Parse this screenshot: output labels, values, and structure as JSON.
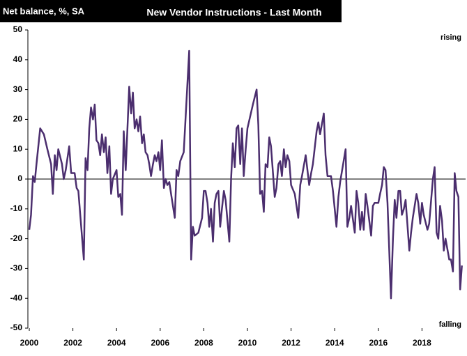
{
  "chart_data": {
    "type": "line",
    "title": "New Vendor Instructions - Last Month",
    "y_label": "Net balance, %, SA",
    "annotations": [
      "rising",
      "falling"
    ],
    "x": [
      2000.0,
      2000.08,
      2000.17,
      2000.25,
      2000.33,
      2000.5,
      2000.67,
      2000.83,
      2001.0,
      2001.08,
      2001.17,
      2001.25,
      2001.33,
      2001.5,
      2001.58,
      2001.67,
      2001.83,
      2001.92,
      2002.08,
      2002.17,
      2002.25,
      2002.5,
      2002.58,
      2002.67,
      2002.75,
      2002.83,
      2002.92,
      2003.0,
      2003.08,
      2003.17,
      2003.25,
      2003.33,
      2003.42,
      2003.5,
      2003.58,
      2003.67,
      2003.75,
      2003.83,
      2004.0,
      2004.08,
      2004.17,
      2004.25,
      2004.33,
      2004.42,
      2004.58,
      2004.67,
      2004.75,
      2004.83,
      2004.92,
      2005.0,
      2005.08,
      2005.17,
      2005.25,
      2005.33,
      2005.42,
      2005.5,
      2005.58,
      2005.67,
      2005.75,
      2005.83,
      2005.92,
      2006.0,
      2006.08,
      2006.17,
      2006.25,
      2006.33,
      2006.42,
      2006.5,
      2006.67,
      2006.75,
      2006.83,
      2006.92,
      2007.08,
      2007.33,
      2007.42,
      2007.5,
      2007.58,
      2007.75,
      2007.92,
      2008.0,
      2008.08,
      2008.17,
      2008.25,
      2008.33,
      2008.42,
      2008.5,
      2008.58,
      2008.67,
      2008.75,
      2008.83,
      2008.92,
      2009.0,
      2009.17,
      2009.25,
      2009.33,
      2009.42,
      2009.5,
      2009.58,
      2009.67,
      2009.75,
      2009.83,
      2009.92,
      2010.0,
      2010.25,
      2010.42,
      2010.5,
      2010.58,
      2010.67,
      2010.75,
      2010.83,
      2010.92,
      2011.0,
      2011.08,
      2011.17,
      2011.25,
      2011.33,
      2011.42,
      2011.5,
      2011.58,
      2011.67,
      2011.75,
      2011.83,
      2011.92,
      2012.0,
      2012.17,
      2012.33,
      2012.42,
      2012.5,
      2012.67,
      2012.75,
      2012.83,
      2012.92,
      2013.0,
      2013.17,
      2013.25,
      2013.33,
      2013.5,
      2013.58,
      2013.67,
      2013.83,
      2013.92,
      2014.08,
      2014.17,
      2014.25,
      2014.5,
      2014.58,
      2014.67,
      2014.75,
      2014.92,
      2015.0,
      2015.08,
      2015.17,
      2015.25,
      2015.33,
      2015.42,
      2015.5,
      2015.67,
      2015.75,
      2015.83,
      2016.0,
      2016.08,
      2016.17,
      2016.25,
      2016.33,
      2016.42,
      2016.58,
      2016.67,
      2016.75,
      2016.83,
      2016.92,
      2017.0,
      2017.08,
      2017.17,
      2017.25,
      2017.42,
      2017.5,
      2017.58,
      2017.75,
      2017.83,
      2017.92,
      2018.0,
      2018.08,
      2018.25,
      2018.33,
      2018.5,
      2018.58,
      2018.67,
      2018.75,
      2018.83,
      2018.92,
      2019.0,
      2019.08,
      2019.25,
      2019.33,
      2019.42,
      2019.5,
      2019.58,
      2019.67,
      2019.75,
      2019.83
    ],
    "series": [
      {
        "color": "#4b2e6e",
        "values": [
          -17,
          -12,
          1,
          -1,
          5,
          17,
          15,
          10,
          5,
          -5,
          8,
          3,
          10,
          5,
          0,
          3,
          11,
          2,
          2,
          -3,
          -4,
          -27,
          7,
          3,
          17,
          24,
          20,
          25,
          13,
          12,
          8,
          15,
          9,
          14,
          2,
          11,
          -5,
          0,
          3,
          -6,
          -5,
          -12,
          16,
          3,
          31,
          22,
          29,
          17,
          20,
          16,
          21,
          12,
          15,
          9,
          8,
          5,
          1,
          5,
          8,
          6,
          9,
          3,
          13,
          -3,
          0,
          -2,
          -1,
          -5,
          -13,
          3,
          1,
          6,
          9,
          43,
          -27,
          -16,
          -19,
          -18,
          -13,
          -4,
          -4,
          -8,
          -16,
          -10,
          -21,
          -8,
          -5,
          -4,
          -16,
          -10,
          -4,
          -7,
          -21,
          0,
          12,
          4,
          17,
          18,
          5,
          17,
          1,
          10,
          17,
          25,
          30,
          18,
          -5,
          -4,
          -11,
          5,
          4,
          14,
          11,
          2,
          -6,
          -3,
          5,
          6,
          1,
          10,
          4,
          8,
          6,
          -2,
          -5,
          -13,
          -2,
          1,
          8,
          3,
          -2,
          2,
          5,
          16,
          19,
          15,
          22,
          8,
          1,
          1,
          -4,
          -16,
          -6,
          -1,
          10,
          -16,
          -13,
          -9,
          -18,
          -4,
          -8,
          -17,
          -11,
          -17,
          -5,
          -9,
          -19,
          -9,
          -8,
          -8,
          -5,
          -2,
          4,
          3,
          -8,
          -40,
          -20,
          -7,
          -13,
          -4,
          -4,
          -12,
          -10,
          -7,
          -24,
          -18,
          -13,
          -5,
          -8,
          -15,
          -8,
          -12,
          -17,
          -15,
          0,
          4,
          -18,
          -20,
          -9,
          -14,
          -24,
          -20,
          -27,
          -27,
          -31,
          2,
          -4,
          -6,
          -37,
          -29
        ]
      }
    ],
    "xlim": [
      2000,
      2020
    ],
    "xticks": [
      2000,
      2002,
      2004,
      2006,
      2008,
      2010,
      2012,
      2014,
      2016,
      2018
    ],
    "ylim": [
      -50,
      50
    ],
    "yticks": [
      -50,
      -40,
      -30,
      -20,
      -10,
      0,
      10,
      20,
      30,
      40,
      50
    ]
  }
}
